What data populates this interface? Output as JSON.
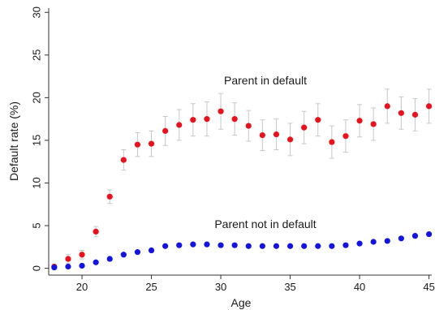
{
  "chart_data": {
    "type": "scatter",
    "title": "",
    "xlabel": "Age",
    "ylabel": "Default rate (%)",
    "xlim": [
      17.6,
      45.2
    ],
    "ylim": [
      -0.8,
      30.5
    ],
    "xticks": [
      20,
      25,
      30,
      35,
      40,
      45
    ],
    "yticks": [
      0,
      5,
      10,
      15,
      20,
      25,
      30
    ],
    "grid": false,
    "legend": "none (series labeled directly on plot)",
    "series": [
      {
        "name": "Parent in default",
        "color": "#e8121c",
        "error_bar_color": "#c8c8c8",
        "x": [
          18,
          19,
          20,
          21,
          22,
          23,
          24,
          25,
          26,
          27,
          28,
          29,
          30,
          31,
          32,
          33,
          34,
          35,
          36,
          37,
          38,
          39,
          40,
          41,
          42,
          43,
          44,
          45
        ],
        "y": [
          0.2,
          1.1,
          1.6,
          4.3,
          8.4,
          12.7,
          14.5,
          14.6,
          16.1,
          16.8,
          17.4,
          17.5,
          18.4,
          17.5,
          16.7,
          15.6,
          15.7,
          15.1,
          16.5,
          17.4,
          14.8,
          15.5,
          17.3,
          16.9,
          19.0,
          18.2,
          18.0,
          19.0
        ],
        "y_lower": [
          0.0,
          0.6,
          1.1,
          3.7,
          7.6,
          11.5,
          13.1,
          13.1,
          14.4,
          15.0,
          15.5,
          15.5,
          16.3,
          15.6,
          14.9,
          13.8,
          13.9,
          13.2,
          14.6,
          15.5,
          12.9,
          13.6,
          15.4,
          15.0,
          17.0,
          16.3,
          16.1,
          17.0
        ],
        "y_upper": [
          0.4,
          1.6,
          2.1,
          4.9,
          9.2,
          13.9,
          15.9,
          16.1,
          17.8,
          18.6,
          19.3,
          19.5,
          20.5,
          19.4,
          18.5,
          17.4,
          17.5,
          17.0,
          18.4,
          19.3,
          16.7,
          17.4,
          19.2,
          18.8,
          21.0,
          20.1,
          19.9,
          21.0
        ]
      },
      {
        "name": "Parent not in default",
        "color": "#1414e0",
        "x": [
          18,
          19,
          20,
          21,
          22,
          23,
          24,
          25,
          26,
          27,
          28,
          29,
          30,
          31,
          32,
          33,
          34,
          35,
          36,
          37,
          38,
          39,
          40,
          41,
          42,
          43,
          44,
          45
        ],
        "y": [
          0.1,
          0.2,
          0.3,
          0.7,
          1.1,
          1.6,
          1.9,
          2.1,
          2.6,
          2.7,
          2.8,
          2.8,
          2.7,
          2.7,
          2.6,
          2.6,
          2.6,
          2.6,
          2.6,
          2.6,
          2.6,
          2.7,
          2.9,
          3.1,
          3.2,
          3.5,
          3.8,
          4.0
        ]
      }
    ]
  }
}
